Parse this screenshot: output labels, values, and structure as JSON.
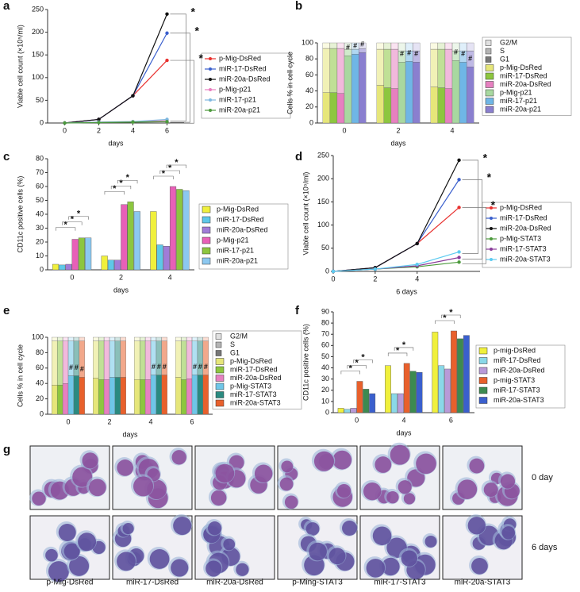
{
  "chart_data": [
    {
      "type": "line",
      "panel": "a",
      "xlabel": "days",
      "ylabel": "Viable cell count (×10⁵/ml)",
      "x": [
        0,
        2,
        4,
        6
      ],
      "xlim": [
        -1,
        7
      ],
      "xticks": [
        0,
        2,
        4,
        6
      ],
      "ylim": [
        0,
        250
      ],
      "yticks": [
        0,
        50,
        100,
        150,
        200,
        250
      ],
      "series": [
        {
          "name": "p-Mig-DsRed",
          "color": "#e8312f",
          "values": [
            0,
            8,
            60,
            138
          ]
        },
        {
          "name": "miR-17-DsRed",
          "color": "#3a5fcd",
          "values": [
            0,
            8,
            60,
            198
          ]
        },
        {
          "name": "miR-20a-DsRed",
          "color": "#111111",
          "values": [
            0,
            8,
            60,
            240
          ]
        },
        {
          "name": "p-Mig-p21",
          "color": "#e87fc0",
          "values": [
            0,
            2,
            3,
            5
          ]
        },
        {
          "name": "miR-17-p21",
          "color": "#7fb8e0",
          "values": [
            0,
            2,
            3,
            8
          ]
        },
        {
          "name": "miR-20a-p21",
          "color": "#4c9a3c",
          "values": [
            0,
            1,
            2,
            3
          ]
        }
      ],
      "annotations": [
        "*",
        "*",
        "*"
      ]
    },
    {
      "type": "stacked-bar",
      "panel": "b",
      "xlabel": "days",
      "ylabel": "Cells % in cell cycle",
      "categories": [
        "0",
        "2",
        "4"
      ],
      "ylim": [
        0,
        100
      ],
      "yticks": [
        0,
        20,
        40,
        60,
        80,
        100
      ],
      "phases": [
        "G2/M",
        "S",
        "G1"
      ],
      "series": [
        {
          "name": "p-Mig-DsRed",
          "color": "#e6e67a",
          "values": [
            [
              7,
              8,
              8
            ],
            [
              55,
              45,
              47
            ],
            [
              38,
              47,
              45
            ]
          ]
        },
        {
          "name": "miR-17-DsRed",
          "color": "#8dc63f",
          "values": [
            [
              7,
              8,
              8
            ],
            [
              55,
              48,
              48
            ],
            [
              38,
              44,
              44
            ]
          ]
        },
        {
          "name": "miR-20a-DsRed",
          "color": "#e680c0",
          "values": [
            [
              7,
              8,
              8
            ],
            [
              56,
              49,
              49
            ],
            [
              37,
              43,
              43
            ]
          ]
        },
        {
          "name": "p-Mig-p21",
          "color": "#a8d8a0",
          "values": [
            [
              8,
              10,
              10
            ],
            [
              8,
              14,
              12
            ],
            [
              84,
              76,
              78
            ]
          ]
        },
        {
          "name": "miR-17-p21",
          "color": "#6fb6e6",
          "values": [
            [
              8,
              10,
              10
            ],
            [
              6,
              13,
              14
            ],
            [
              86,
              77,
              76
            ]
          ]
        },
        {
          "name": "miR-20a-p21",
          "color": "#8a7fcf",
          "values": [
            [
              7,
              10,
              10
            ],
            [
              5,
              14,
              20
            ],
            [
              88,
              76,
              70
            ]
          ]
        }
      ],
      "annotations": [
        "#",
        "#",
        "#",
        "#",
        "#",
        "#",
        "#",
        "#",
        "#"
      ]
    },
    {
      "type": "grouped-bar",
      "panel": "c",
      "xlabel": "days",
      "ylabel": "CD11c positive cells (%)",
      "categories": [
        "0",
        "2",
        "4"
      ],
      "ylim": [
        0,
        80
      ],
      "yticks": [
        0,
        10,
        20,
        30,
        40,
        50,
        60,
        70,
        80
      ],
      "series": [
        {
          "name": "p-Mig-DsRed",
          "color": "#f0f03c",
          "values": [
            4,
            10,
            42
          ]
        },
        {
          "name": "miR-17-DsRed",
          "color": "#5ec8e8",
          "values": [
            3.5,
            7,
            18
          ]
        },
        {
          "name": "miR-20a-DsRed",
          "color": "#a07cd8",
          "values": [
            4,
            7,
            17
          ]
        },
        {
          "name": "p-Mig-p21",
          "color": "#e860b8",
          "values": [
            22,
            47,
            60
          ]
        },
        {
          "name": "miR-17-p21",
          "color": "#8cc63f",
          "values": [
            23,
            49,
            58
          ]
        },
        {
          "name": "miR-20a-p21",
          "color": "#8cc8f0",
          "values": [
            23,
            42,
            57
          ]
        }
      ],
      "annotations": [
        "*",
        "*",
        "*",
        "*",
        "*",
        "*",
        "*",
        "*",
        "*"
      ]
    },
    {
      "type": "line",
      "panel": "d",
      "xlabel": "6 days",
      "ylabel": "Viable cell count (×10⁵/ml)",
      "x": [
        0,
        2,
        4,
        6
      ],
      "xlim": [
        0,
        7
      ],
      "xticks": [
        0,
        2,
        4
      ],
      "ylim": [
        0,
        250
      ],
      "yticks": [
        0,
        50,
        100,
        150,
        200,
        250
      ],
      "series": [
        {
          "name": "p-Mig-DsRed",
          "color": "#e8312f",
          "values": [
            0,
            8,
            60,
            138
          ]
        },
        {
          "name": "miR-17-DsRed",
          "color": "#3a5fcd",
          "values": [
            0,
            8,
            60,
            198
          ]
        },
        {
          "name": "miR-20a-DsRed",
          "color": "#111111",
          "values": [
            0,
            8,
            60,
            240
          ]
        },
        {
          "name": "p-Mig-STAT3",
          "color": "#4c9a3c",
          "values": [
            0,
            5,
            10,
            20
          ]
        },
        {
          "name": "miR-17-STAT3",
          "color": "#8a3c9a",
          "values": [
            0,
            5,
            12,
            30
          ]
        },
        {
          "name": "miR-20a-STAT3",
          "color": "#5ecbf0",
          "values": [
            0,
            5,
            15,
            42
          ]
        }
      ],
      "annotations": [
        "*",
        "*",
        "*"
      ]
    },
    {
      "type": "stacked-bar",
      "panel": "e",
      "xlabel": "days",
      "ylabel": "Cells % in cell cycle",
      "categories": [
        "0",
        "2",
        "4",
        "6"
      ],
      "ylim": [
        0,
        100
      ],
      "yticks": [
        0,
        20,
        40,
        60,
        80,
        100
      ],
      "phases": [
        "G2/M",
        "S",
        "G1"
      ],
      "series": [
        {
          "name": "p-Mig-DsRed",
          "color": "#e6e67a",
          "values": [
            [
              5,
              5,
              5,
              5
            ],
            [
              57,
              48,
              50,
              47
            ],
            [
              38,
              47,
              45,
              48
            ]
          ]
        },
        {
          "name": "miR-17-DsRed",
          "color": "#8dc63f",
          "values": [
            [
              5,
              5,
              5,
              5
            ],
            [
              57,
              50,
              50,
              50
            ],
            [
              38,
              45,
              45,
              45
            ]
          ]
        },
        {
          "name": "miR-20a-DsRed",
          "color": "#e680c0",
          "values": [
            [
              5,
              5,
              5,
              5
            ],
            [
              55,
              50,
              50,
              49
            ],
            [
              40,
              45,
              45,
              46
            ]
          ]
        },
        {
          "name": "p-Mig-STAT3",
          "color": "#6fc6e8",
          "values": [
            [
              5,
              5,
              5,
              5
            ],
            [
              45,
              47,
              44,
              44
            ],
            [
              50,
              48,
              51,
              51
            ]
          ]
        },
        {
          "name": "miR-17-STAT3",
          "color": "#2a8a80",
          "values": [
            [
              5,
              5,
              5,
              5
            ],
            [
              45,
              47,
              44,
              44
            ],
            [
              50,
              48,
              51,
              51
            ]
          ]
        },
        {
          "name": "miR-20a-STAT3",
          "color": "#e8602c",
          "values": [
            [
              5,
              5,
              5,
              5
            ],
            [
              47,
              47,
              44,
              44
            ],
            [
              48,
              48,
              51,
              51
            ]
          ]
        }
      ],
      "annotations": [
        "#",
        "#",
        "#",
        "#",
        "#",
        "#",
        "#",
        "#",
        "#"
      ]
    },
    {
      "type": "grouped-bar",
      "panel": "f",
      "xlabel": "days",
      "ylabel": "CD11c positive cells (%)",
      "categories": [
        "0",
        "4",
        "6"
      ],
      "ylim": [
        0,
        90
      ],
      "yticks": [
        0,
        10,
        20,
        30,
        40,
        50,
        60,
        70,
        80,
        90
      ],
      "series": [
        {
          "name": "p-mig-DsRed",
          "color": "#f0f03c",
          "values": [
            4,
            42,
            72
          ]
        },
        {
          "name": "miR-17-DsRed",
          "color": "#8ad8e8",
          "values": [
            3,
            17,
            42
          ]
        },
        {
          "name": "miR-20a-DsRed",
          "color": "#b89ad8",
          "values": [
            4,
            17,
            39
          ]
        },
        {
          "name": "p-mig-STAT3",
          "color": "#e8602c",
          "values": [
            28,
            44,
            73
          ]
        },
        {
          "name": "miR-17-STAT3",
          "color": "#3c8a50",
          "values": [
            21,
            37,
            66
          ]
        },
        {
          "name": "miR-20a-STAT3",
          "color": "#3a5fcd",
          "values": [
            17,
            36,
            69
          ]
        }
      ],
      "annotations": [
        "*",
        "*",
        "*",
        "*",
        "*",
        "*",
        "*"
      ]
    }
  ],
  "images": {
    "panel": "g",
    "columns": [
      "p-Mig-DsRed",
      "miR-17-DsRed",
      "miR-20a-DsRed",
      "p-Ming-STAT3",
      "miR-17-STAT3",
      "miR-20a-STAT3"
    ],
    "rows": [
      "0 day",
      "6 days"
    ]
  }
}
